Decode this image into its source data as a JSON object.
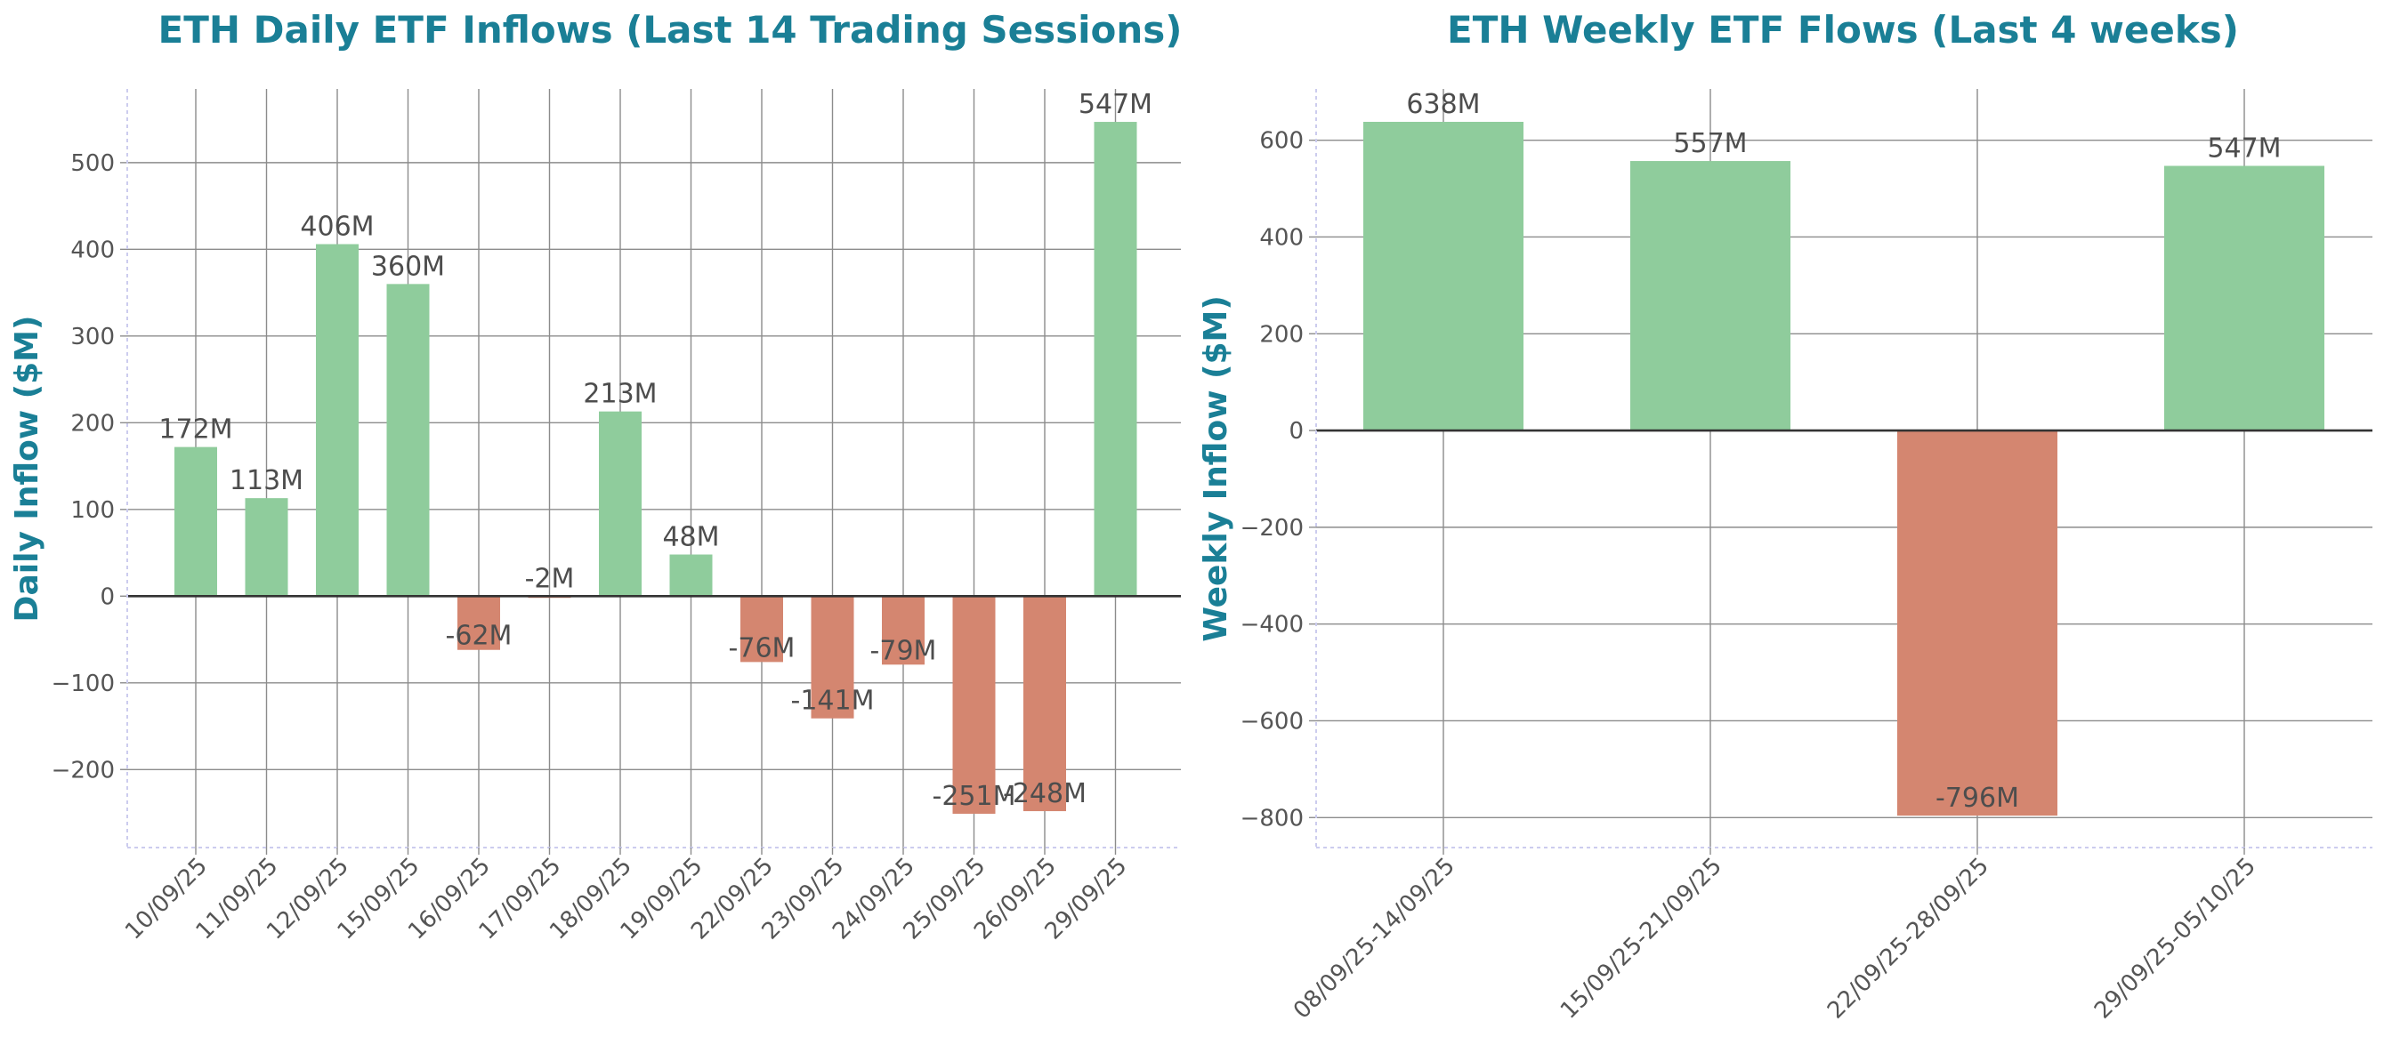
{
  "colors": {
    "positive": "#8fcc9c",
    "negative": "#d48670",
    "title": "#1a7f96"
  },
  "chart_data": [
    {
      "type": "bar",
      "title": "ETH Daily ETF Inflows (Last 14 Trading Sessions)",
      "xlabel": "",
      "ylabel": "Daily Inflow ($M)",
      "categories": [
        "10/09/25",
        "11/09/25",
        "12/09/25",
        "15/09/25",
        "16/09/25",
        "17/09/25",
        "18/09/25",
        "19/09/25",
        "22/09/25",
        "23/09/25",
        "24/09/25",
        "25/09/25",
        "26/09/25",
        "29/09/25"
      ],
      "values": [
        172,
        113,
        406,
        360,
        -62,
        -2,
        213,
        48,
        -76,
        -141,
        -79,
        -251,
        -248,
        547
      ],
      "data_labels": [
        "172M",
        "113M",
        "406M",
        "360M",
        "-62M",
        "-2M",
        "213M",
        "48M",
        "-76M",
        "-141M",
        "-79M",
        "-251M",
        "-248M",
        "547M"
      ],
      "ylim": [
        -290,
        585
      ],
      "yticks": [
        -200,
        -100,
        0,
        100,
        200,
        300,
        400,
        500
      ],
      "ytick_labels": [
        "−200",
        "−100",
        "0",
        "100",
        "200",
        "300",
        "400",
        "500"
      ],
      "grid": true,
      "legend": "none"
    },
    {
      "type": "bar",
      "title": "ETH Weekly ETF Flows (Last 4 weeks)",
      "xlabel": "",
      "ylabel": "Weekly Inflow ($M)",
      "categories": [
        "08/09/25-14/09/25",
        "15/09/25-21/09/25",
        "22/09/25-28/09/25",
        "29/09/25-05/10/25"
      ],
      "values": [
        638,
        557,
        -796,
        547
      ],
      "data_labels": [
        "638M",
        "557M",
        "-796M",
        "547M"
      ],
      "ylim": [
        -862,
        706
      ],
      "yticks": [
        -800,
        -600,
        -400,
        -200,
        0,
        200,
        400,
        600
      ],
      "ytick_labels": [
        "−800",
        "−600",
        "−400",
        "−200",
        "0",
        "200",
        "400",
        "600"
      ],
      "grid": true,
      "legend": "none"
    }
  ]
}
